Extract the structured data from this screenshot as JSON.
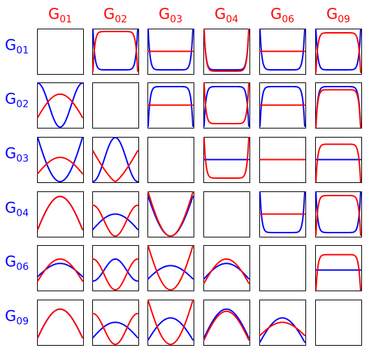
{
  "chart_data": {
    "type": "line",
    "layout": "grid",
    "title": "",
    "column_labels": [
      {
        "main": "G",
        "sub": "01"
      },
      {
        "main": "G",
        "sub": "02"
      },
      {
        "main": "G",
        "sub": "03"
      },
      {
        "main": "G",
        "sub": "04"
      },
      {
        "main": "G",
        "sub": "06"
      },
      {
        "main": "G",
        "sub": "09"
      }
    ],
    "row_labels": [
      {
        "main": "G",
        "sub": "01"
      },
      {
        "main": "G",
        "sub": "02"
      },
      {
        "main": "G",
        "sub": "03"
      },
      {
        "main": "G",
        "sub": "04"
      },
      {
        "main": "G",
        "sub": "06"
      },
      {
        "main": "G",
        "sub": "09"
      }
    ],
    "column_label_color": "#ff0000",
    "row_label_color": "#0000ff",
    "series_colors": {
      "blue": "#0000ff",
      "red": "#ff0000"
    },
    "x_range": [
      0,
      1
    ],
    "y_range": [
      0,
      1
    ],
    "ticks_shown": false,
    "grid": false,
    "panels": [
      [
        {
          "empty": true
        },
        {
          "blue": {
            "kind": "cup",
            "level": 0.08,
            "depth": 0.92
          },
          "red": {
            "kind": "cap",
            "level": 0.95,
            "depth": 0.9
          }
        },
        {
          "blue": {
            "kind": "cup",
            "level": 0.08,
            "depth": 0.92
          },
          "red": {
            "kind": "flat",
            "level": 0.5
          }
        },
        {
          "blue": {
            "kind": "cup",
            "level": 0.08,
            "depth": 0.92
          },
          "red": {
            "kind": "cup",
            "level": 0.05,
            "depth": 0.95
          }
        },
        {
          "blue": {
            "kind": "cup",
            "level": 0.08,
            "depth": 0.92
          },
          "red": {
            "kind": "flat",
            "level": 0.5
          }
        },
        {
          "blue": {
            "kind": "cup",
            "level": 0.08,
            "depth": 0.92
          },
          "red": {
            "kind": "cap",
            "level": 0.92,
            "depth": 0.9
          }
        }
      ],
      [
        {
          "blue": {
            "kind": "cos2",
            "mid": 0.5,
            "amp": 0.5
          },
          "red": {
            "kind": "hump",
            "base": 0.22,
            "peak": 0.75
          }
        },
        {
          "empty": true
        },
        {
          "blue": {
            "kind": "cap",
            "level": 0.92,
            "depth": 0.9
          },
          "red": {
            "kind": "flat",
            "level": 0.5
          }
        },
        {
          "blue": {
            "kind": "cap",
            "level": 0.92,
            "depth": 0.9
          },
          "red": {
            "kind": "cup",
            "level": 0.08,
            "depth": 0.92
          }
        },
        {
          "blue": {
            "kind": "cap",
            "level": 0.92,
            "depth": 0.9
          },
          "red": {
            "kind": "flat",
            "level": 0.5
          }
        },
        {
          "blue": {
            "kind": "cap",
            "level": 0.92,
            "depth": 0.9
          },
          "red": {
            "kind": "cap",
            "level": 0.85,
            "depth": 0.85
          }
        }
      ],
      [
        {
          "blue": {
            "kind": "hump",
            "base": 0.0,
            "peak": 1.0,
            "invert": true
          },
          "red": {
            "kind": "hump",
            "base": 0.18,
            "peak": 0.55
          }
        },
        {
          "blue": {
            "kind": "cos2",
            "mid": 0.5,
            "amp": 0.5,
            "invert": true
          },
          "red": {
            "kind": "vdip",
            "top": 0.7,
            "bottom": 0.0
          }
        },
        {
          "empty": true
        },
        {
          "blue": {
            "kind": "flat",
            "level": 0.5
          },
          "red": {
            "kind": "cup",
            "level": 0.08,
            "depth": 0.92
          }
        },
        {
          "blue": {
            "kind": "flat",
            "level": 0.5
          },
          "red": {
            "kind": "flat",
            "level": 0.5
          }
        },
        {
          "blue": {
            "kind": "flat",
            "level": 0.5
          },
          "red": {
            "kind": "cap",
            "level": 0.85,
            "depth": 0.85
          }
        }
      ],
      [
        {
          "blue": {
            "kind": "hump",
            "base": 0.15,
            "peak": 0.9
          },
          "red": {
            "kind": "hump",
            "base": 0.15,
            "peak": 0.9
          }
        },
        {
          "blue": {
            "kind": "hump",
            "base": 0.15,
            "peak": 0.5
          },
          "red": {
            "kind": "cos2",
            "mid": 0.35,
            "amp": 0.35
          }
        },
        {
          "blue": {
            "kind": "hump",
            "base": 0.0,
            "peak": 0.9,
            "invert": true
          },
          "red": {
            "kind": "hump",
            "base": 0.0,
            "peak": 1.0,
            "invert": true
          }
        },
        {
          "empty": true
        },
        {
          "blue": {
            "kind": "cup",
            "level": 0.08,
            "depth": 0.92
          },
          "red": {
            "kind": "flat",
            "level": 0.5
          }
        },
        {
          "blue": {
            "kind": "cup",
            "level": 0.08,
            "depth": 0.92
          },
          "red": {
            "kind": "cap",
            "level": 0.92,
            "depth": 0.9
          }
        }
      ],
      [
        {
          "blue": {
            "kind": "hump",
            "base": 0.3,
            "peak": 0.6
          },
          "red": {
            "kind": "hump",
            "base": 0.2,
            "peak": 0.7
          }
        },
        {
          "blue": {
            "kind": "cos2",
            "mid": 0.45,
            "amp": 0.25,
            "invert": true
          },
          "red": {
            "kind": "cos2",
            "mid": 0.35,
            "amp": 0.35
          }
        },
        {
          "blue": {
            "kind": "hump",
            "base": 0.25,
            "peak": 0.55
          },
          "red": {
            "kind": "hump",
            "base": 0.0,
            "peak": 1.0,
            "invert": true
          }
        },
        {
          "blue": {
            "kind": "hump",
            "base": 0.25,
            "peak": 0.6
          },
          "red": {
            "kind": "hump",
            "base": 0.15,
            "peak": 0.7
          }
        },
        {
          "empty": true
        },
        {
          "blue": {
            "kind": "flat",
            "level": 0.45
          },
          "red": {
            "kind": "cap",
            "level": 0.8,
            "depth": 0.85
          }
        }
      ],
      [
        {
          "blue": {
            "kind": "hump",
            "base": 0.15,
            "peak": 0.8
          },
          "red": {
            "kind": "hump",
            "base": 0.15,
            "peak": 0.8
          }
        },
        {
          "blue": {
            "kind": "hump",
            "base": 0.15,
            "peak": 0.5
          },
          "red": {
            "kind": "cos2",
            "mid": 0.35,
            "amp": 0.35
          }
        },
        {
          "blue": {
            "kind": "hump",
            "base": 0.1,
            "peak": 0.6
          },
          "red": {
            "kind": "hump",
            "base": 0.0,
            "peak": 1.0,
            "invert": true
          }
        },
        {
          "blue": {
            "kind": "hump",
            "base": 0.15,
            "peak": 0.8
          },
          "red": {
            "kind": "hump",
            "base": 0.1,
            "peak": 0.75
          }
        },
        {
          "blue": {
            "kind": "hump",
            "base": 0.05,
            "peak": 0.6
          },
          "red": {
            "kind": "hump",
            "base": 0.2,
            "peak": 0.5
          }
        },
        {
          "empty": true
        }
      ]
    ]
  }
}
